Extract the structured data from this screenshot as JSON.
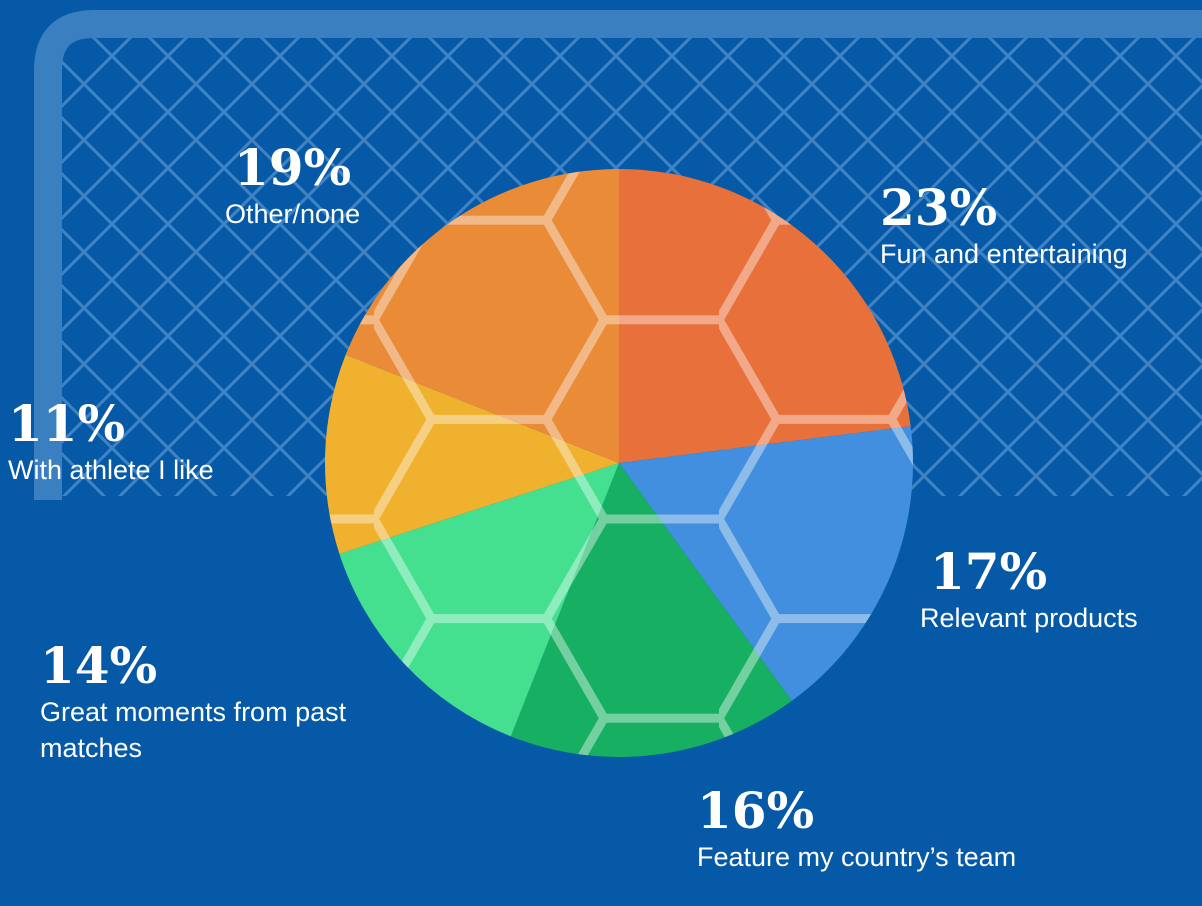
{
  "chart_data": {
    "type": "pie",
    "categories": [
      "Fun and entertaining",
      "Relevant products",
      "Feature my country’s team",
      "Great moments from past matches",
      "With athlete I like",
      "Other/none"
    ],
    "values": [
      23,
      17,
      16,
      14,
      11,
      19
    ],
    "value_labels": [
      "23%",
      "17%",
      "16%",
      "14%",
      "11%",
      "19%"
    ],
    "colors": [
      "#e8703a",
      "#418fde",
      "#17b063",
      "#45e08f",
      "#efb12e",
      "#ea8b38"
    ]
  }
}
